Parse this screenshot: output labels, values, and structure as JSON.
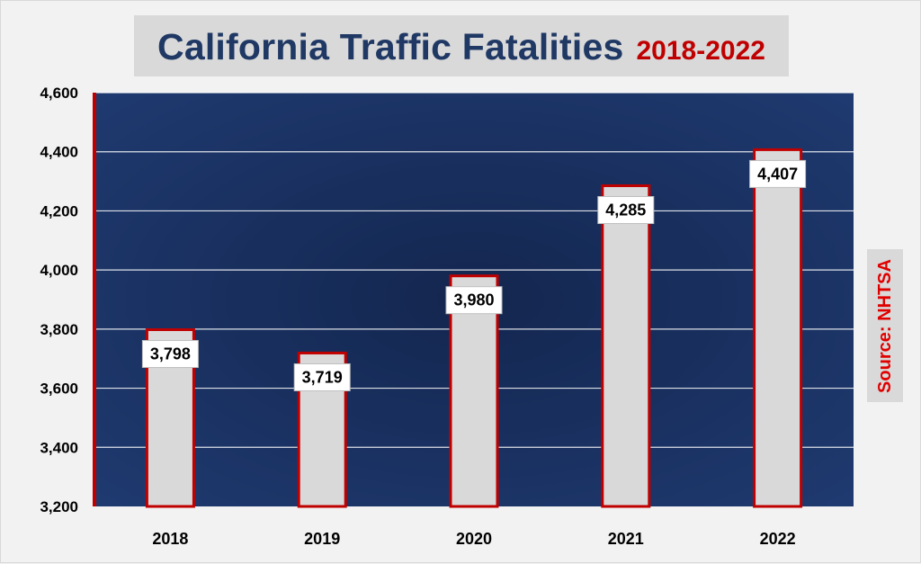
{
  "title": {
    "main": "California Traffic Fatalities",
    "sub": "2018-2022"
  },
  "source": "Source: NHTSA",
  "colors": {
    "plot_bg_center": "#13264f",
    "plot_bg_edge": "#1f3a70",
    "bar_fill": "#d9d9d9",
    "bar_outline": "#c00000",
    "title_main": "#1f3864",
    "title_sub": "#c00000",
    "source_text": "#e00000",
    "axis_line": "#c00000",
    "grid": "#ffffff"
  },
  "chart_data": {
    "type": "bar",
    "categories": [
      "2018",
      "2019",
      "2020",
      "2021",
      "2022"
    ],
    "values": [
      3798,
      3719,
      3980,
      4285,
      4407
    ],
    "data_labels": [
      "3,798",
      "3,719",
      "3,980",
      "4,285",
      "4,407"
    ],
    "title": "California Traffic Fatalities 2018-2022",
    "xlabel": "",
    "ylabel": "",
    "ylim": [
      3200,
      4600
    ],
    "yticks": [
      3200,
      3400,
      3600,
      3800,
      4000,
      4200,
      4400,
      4600
    ],
    "ytick_labels": [
      "3,200",
      "3,400",
      "3,600",
      "3,800",
      "4,000",
      "4,200",
      "4,400",
      "4,600"
    ],
    "grid": true,
    "legend": "none"
  }
}
